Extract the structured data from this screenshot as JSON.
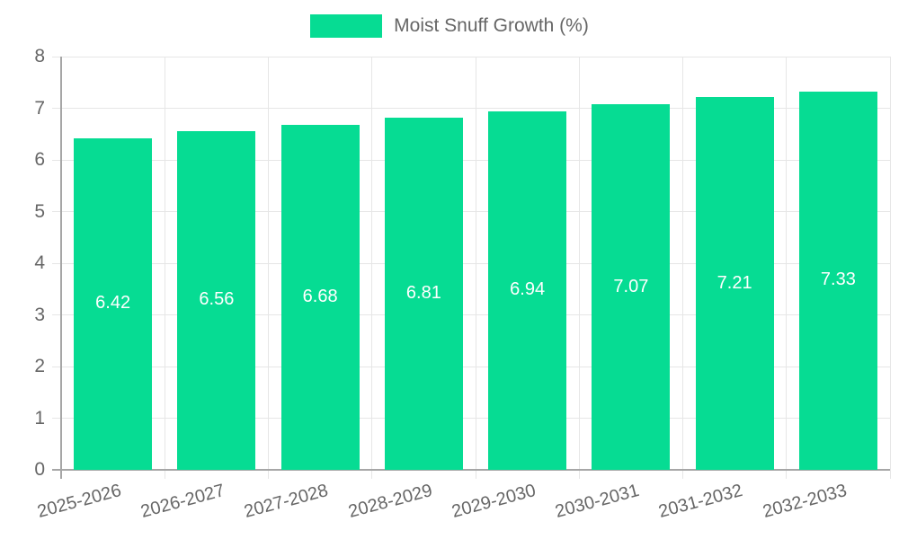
{
  "legend": {
    "label": "Moist Snuff Growth (%)"
  },
  "colors": {
    "bar": "#06dc93",
    "grid": "#e6e6e6",
    "axis": "#a6a6a6",
    "tick_text": "#666666",
    "value_text": "#ffffff"
  },
  "chart_data": {
    "type": "bar",
    "title": "",
    "xlabel": "",
    "ylabel": "",
    "legend_position": "top",
    "grid": true,
    "categories": [
      "2025-2026",
      "2026-2027",
      "2027-2028",
      "2028-2029",
      "2029-2030",
      "2030-2031",
      "2031-2032",
      "2032-2033"
    ],
    "series": [
      {
        "name": "Moist Snuff Growth (%)",
        "values": [
          6.42,
          6.56,
          6.68,
          6.81,
          6.94,
          7.07,
          7.21,
          7.33
        ]
      }
    ],
    "value_labels": [
      "6.42",
      "6.56",
      "6.68",
      "6.81",
      "6.94",
      "7.07",
      "7.21",
      "7.33"
    ],
    "ylim": [
      0,
      8
    ],
    "y_ticks": [
      0,
      1,
      2,
      3,
      4,
      5,
      6,
      7,
      8
    ]
  }
}
